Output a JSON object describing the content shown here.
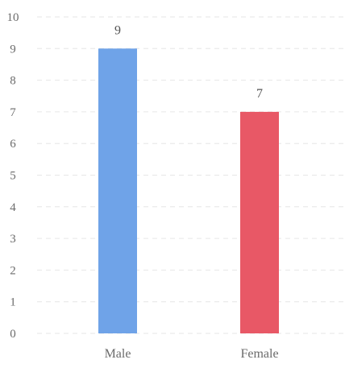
{
  "chart_data": {
    "type": "bar",
    "title": "",
    "xlabel": "",
    "ylabel": "",
    "categories": [
      "Male",
      "Female"
    ],
    "values": [
      9,
      7
    ],
    "bar_colors": [
      "#6fa3e8",
      "#e85866"
    ],
    "ylim": [
      0,
      10
    ],
    "yticks": [
      0,
      1,
      2,
      3,
      4,
      5,
      6,
      7,
      8,
      9,
      10
    ],
    "grid": true,
    "data_labels": true,
    "legend": "none"
  },
  "colors": {
    "grid": "#e6e6e6",
    "text": "#6b6b6b"
  }
}
